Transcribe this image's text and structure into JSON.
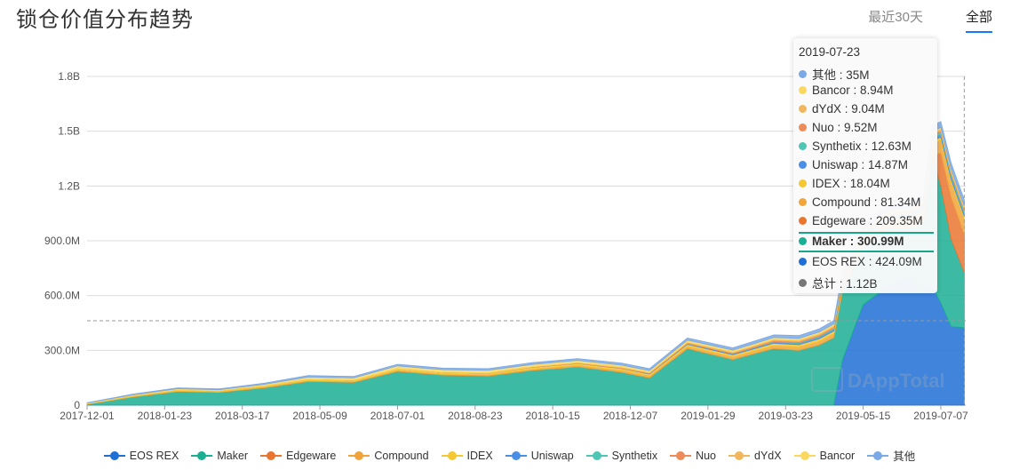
{
  "page": {
    "title": "锁仓价值分布趋势",
    "range_tabs": [
      {
        "label": "最近30天",
        "active": false
      },
      {
        "label": "全部",
        "active": true
      }
    ],
    "watermark": "DAppTotal"
  },
  "tooltip": {
    "date": "2019-07-23",
    "rows": [
      {
        "label": "其他 : 35M",
        "color": "#7aa9e6",
        "highlight": false
      },
      {
        "label": "Bancor : 8.94M",
        "color": "#fad860",
        "highlight": false
      },
      {
        "label": "dYdX : 9.04M",
        "color": "#f2b65c",
        "highlight": false
      },
      {
        "label": "Nuo : 9.52M",
        "color": "#ee8b5a",
        "highlight": false
      },
      {
        "label": "Synthetix : 12.63M",
        "color": "#4ec6b4",
        "highlight": false
      },
      {
        "label": "Uniswap : 14.87M",
        "color": "#4a8ee6",
        "highlight": false
      },
      {
        "label": "IDEX : 18.04M",
        "color": "#f5c732",
        "highlight": false
      },
      {
        "label": "Compound : 81.34M",
        "color": "#f0a43a",
        "highlight": false
      },
      {
        "label": "Edgeware : 209.35M",
        "color": "#ea7530",
        "highlight": false
      },
      {
        "label": "Maker : 300.99M",
        "color": "#1aae93",
        "highlight": true
      },
      {
        "label": "EOS REX : 424.09M",
        "color": "#1f6fd6",
        "highlight": false
      },
      {
        "label": "总计 : 1.12B",
        "color": "#777777",
        "highlight": false
      }
    ]
  },
  "chart_data": {
    "type": "area",
    "stacked": true,
    "y_ticks": [
      "0",
      "300.0M",
      "600.0M",
      "900.0M",
      "1.2B",
      "1.5B",
      "1.8B"
    ],
    "y_tick_values": [
      0,
      300,
      600,
      900,
      1200,
      1500,
      1800
    ],
    "y_unit": "M",
    "ylim": [
      0,
      1800
    ],
    "x_ticks": [
      "2017-12-01",
      "2018-01-23",
      "2018-03-17",
      "2018-05-09",
      "2018-07-01",
      "2018-08-23",
      "2018-10-15",
      "2018-12-07",
      "2019-01-29",
      "2019-03-23",
      "2019-05-15",
      "2019-07-07"
    ],
    "xlim": [
      "2017-12-01",
      "2019-07-24"
    ],
    "grid": true,
    "legend_position": "bottom",
    "pointer_level": 462,
    "pointer_date": "2019-07-23",
    "dates": [
      "2017-12-01",
      "2018-01-01",
      "2018-02-01",
      "2018-03-01",
      "2018-04-01",
      "2018-05-01",
      "2018-06-01",
      "2018-07-01",
      "2018-08-01",
      "2018-09-01",
      "2018-10-01",
      "2018-11-01",
      "2018-12-01",
      "2018-12-20",
      "2019-01-15",
      "2019-02-15",
      "2019-03-01",
      "2019-03-15",
      "2019-04-01",
      "2019-04-15",
      "2019-04-25",
      "2019-05-01",
      "2019-05-15",
      "2019-06-01",
      "2019-06-15",
      "2019-06-25",
      "2019-07-01",
      "2019-07-07",
      "2019-07-14",
      "2019-07-23"
    ],
    "series": [
      {
        "name": "EOS REX",
        "color": "#1f6fd6",
        "values": [
          0,
          0,
          0,
          0,
          0,
          0,
          0,
          0,
          0,
          0,
          0,
          0,
          0,
          0,
          0,
          0,
          0,
          0,
          0,
          0,
          0,
          250,
          550,
          650,
          700,
          620,
          650,
          560,
          430,
          424
        ]
      },
      {
        "name": "Maker",
        "color": "#1aae93",
        "values": [
          5,
          45,
          75,
          70,
          95,
          130,
          125,
          185,
          165,
          160,
          190,
          210,
          180,
          150,
          310,
          250,
          280,
          310,
          300,
          330,
          370,
          380,
          320,
          320,
          270,
          380,
          720,
          640,
          480,
          301
        ]
      },
      {
        "name": "Edgeware",
        "color": "#ea7530",
        "values": [
          0,
          0,
          0,
          0,
          0,
          0,
          0,
          0,
          0,
          0,
          0,
          0,
          0,
          0,
          0,
          0,
          0,
          0,
          0,
          0,
          0,
          0,
          0,
          0,
          0,
          0,
          0,
          180,
          230,
          209
        ]
      },
      {
        "name": "Compound",
        "color": "#f0a43a",
        "values": [
          1,
          2,
          3,
          3,
          4,
          5,
          5,
          6,
          6,
          7,
          8,
          9,
          10,
          10,
          12,
          14,
          15,
          16,
          18,
          20,
          22,
          25,
          30,
          35,
          40,
          50,
          60,
          70,
          80,
          81
        ]
      },
      {
        "name": "IDEX",
        "color": "#f5c732",
        "values": [
          2,
          4,
          5,
          5,
          6,
          7,
          7,
          8,
          8,
          8,
          9,
          9,
          10,
          10,
          11,
          12,
          12,
          13,
          13,
          14,
          14,
          15,
          15,
          16,
          16,
          17,
          17,
          18,
          18,
          18
        ]
      },
      {
        "name": "Uniswap",
        "color": "#4a8ee6",
        "values": [
          0,
          0,
          0,
          0,
          0,
          0,
          0,
          0,
          0,
          0,
          0,
          0,
          1,
          2,
          3,
          4,
          5,
          6,
          7,
          8,
          9,
          10,
          11,
          12,
          13,
          13,
          14,
          14,
          15,
          15
        ]
      },
      {
        "name": "Synthetix",
        "color": "#4ec6b4",
        "values": [
          0,
          0,
          0,
          0,
          0,
          0,
          0,
          0,
          0,
          0,
          0,
          0,
          0,
          0,
          0,
          1,
          2,
          3,
          4,
          5,
          6,
          7,
          8,
          9,
          10,
          11,
          12,
          12,
          13,
          13
        ]
      },
      {
        "name": "Nuo",
        "color": "#ee8b5a",
        "values": [
          0,
          0,
          0,
          0,
          0,
          0,
          0,
          0,
          0,
          0,
          1,
          2,
          3,
          3,
          4,
          5,
          5,
          6,
          6,
          7,
          7,
          8,
          8,
          8,
          9,
          9,
          9,
          9,
          10,
          10
        ]
      },
      {
        "name": "dYdX",
        "color": "#f2b65c",
        "values": [
          0,
          0,
          0,
          0,
          0,
          0,
          0,
          0,
          1,
          2,
          3,
          3,
          4,
          4,
          5,
          5,
          6,
          6,
          7,
          7,
          8,
          8,
          8,
          8,
          9,
          9,
          9,
          9,
          9,
          9
        ]
      },
      {
        "name": "Bancor",
        "color": "#fad860",
        "values": [
          3,
          5,
          7,
          6,
          9,
          12,
          12,
          16,
          14,
          14,
          12,
          12,
          11,
          10,
          11,
          10,
          10,
          10,
          10,
          10,
          9,
          9,
          9,
          9,
          9,
          9,
          9,
          9,
          9,
          9
        ]
      },
      {
        "name": "其他",
        "color": "#7aa9e6",
        "values": [
          2,
          4,
          5,
          5,
          6,
          8,
          8,
          9,
          9,
          9,
          10,
          10,
          11,
          11,
          12,
          13,
          14,
          15,
          16,
          17,
          18,
          20,
          22,
          25,
          27,
          29,
          30,
          32,
          34,
          35
        ]
      }
    ]
  }
}
